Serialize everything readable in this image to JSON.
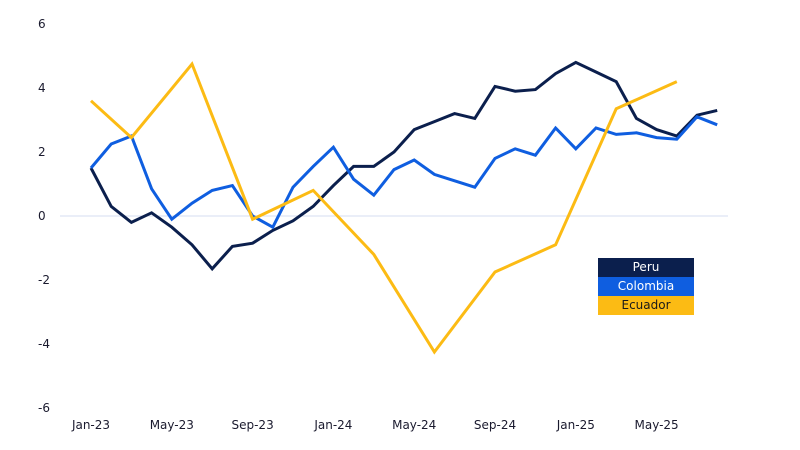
{
  "chart_data": {
    "type": "line",
    "title": "",
    "xlabel": "",
    "ylabel": "",
    "ylim": [
      -6,
      6
    ],
    "yticks": [
      "6",
      "4",
      "2",
      "0",
      "-2",
      "-4",
      "-6"
    ],
    "ytick_values": [
      6,
      4,
      2,
      0,
      -2,
      -4,
      -6
    ],
    "months": [
      "Jan-23",
      "Feb-23",
      "Mar-23",
      "Apr-23",
      "May-23",
      "Jun-23",
      "Jul-23",
      "Aug-23",
      "Sep-23",
      "Oct-23",
      "Nov-23",
      "Dec-23",
      "Jan-24",
      "Feb-24",
      "Mar-24",
      "Apr-24",
      "May-24",
      "Jun-24",
      "Jul-24",
      "Aug-24",
      "Sep-24",
      "Oct-24",
      "Nov-24",
      "Dec-24",
      "Jan-25",
      "Feb-25",
      "Mar-25",
      "Apr-25",
      "May-25",
      "Jun-25",
      "Jul-25",
      "Aug-25"
    ],
    "xticks": [
      "Jan-23",
      "May-23",
      "Sep-23",
      "Jan-24",
      "May-24",
      "Sep-24",
      "Jan-25",
      "May-25"
    ],
    "legend_position": "bottom-right",
    "series": [
      {
        "name": "Peru",
        "color": "#0b1f4d",
        "x": [
          "Jan-23",
          "Feb-23",
          "Mar-23",
          "Apr-23",
          "May-23",
          "Jun-23",
          "Jul-23",
          "Aug-23",
          "Sep-23",
          "Oct-23",
          "Nov-23",
          "Dec-23",
          "Jan-24",
          "Feb-24",
          "Mar-24",
          "Apr-24",
          "May-24",
          "Jun-24",
          "Jul-24",
          "Aug-24",
          "Sep-24",
          "Oct-24",
          "Nov-24",
          "Dec-24",
          "Jan-25",
          "Feb-25",
          "Mar-25",
          "Apr-25",
          "May-25",
          "Jun-25",
          "Jul-25",
          "Aug-25"
        ],
        "values": [
          1.5,
          0.3,
          -0.2,
          0.1,
          -0.35,
          -0.9,
          -1.65,
          -0.95,
          -0.85,
          -0.45,
          -0.15,
          0.3,
          0.95,
          1.55,
          1.55,
          2.0,
          2.7,
          2.95,
          3.2,
          3.05,
          4.05,
          3.9,
          3.95,
          4.45,
          4.8,
          4.5,
          4.2,
          3.05,
          2.7,
          2.5,
          3.15,
          3.3
        ]
      },
      {
        "name": "Colombia",
        "color": "#0f5ee0",
        "x": [
          "Jan-23",
          "Feb-23",
          "Mar-23",
          "Apr-23",
          "May-23",
          "Jun-23",
          "Jul-23",
          "Aug-23",
          "Sep-23",
          "Oct-23",
          "Nov-23",
          "Dec-23",
          "Jan-24",
          "Feb-24",
          "Mar-24",
          "Apr-24",
          "May-24",
          "Jun-24",
          "Jul-24",
          "Aug-24",
          "Sep-24",
          "Oct-24",
          "Nov-24",
          "Dec-24",
          "Jan-25",
          "Feb-25",
          "Mar-25",
          "Apr-25",
          "May-25",
          "Jun-25",
          "Jul-25",
          "Aug-25"
        ],
        "values": [
          1.5,
          2.25,
          2.5,
          0.85,
          -0.1,
          0.4,
          0.8,
          0.95,
          0.0,
          -0.35,
          0.9,
          1.55,
          2.15,
          1.15,
          0.65,
          1.45,
          1.75,
          1.3,
          1.1,
          0.9,
          1.8,
          2.1,
          1.9,
          2.75,
          2.1,
          2.75,
          2.55,
          2.6,
          2.45,
          2.4,
          3.1,
          2.85
        ]
      },
      {
        "name": "Ecuador",
        "color": "#fcbb14",
        "x": [
          "Jan-23",
          "Mar-23",
          "Jun-23",
          "Sep-23",
          "Dec-23",
          "Mar-24",
          "Jun-24",
          "Sep-24",
          "Dec-24",
          "Mar-25",
          "Jun-25"
        ],
        "values": [
          3.6,
          2.45,
          4.75,
          -0.1,
          0.8,
          -1.2,
          -4.25,
          -1.75,
          -0.9,
          3.35,
          4.2
        ]
      }
    ]
  }
}
